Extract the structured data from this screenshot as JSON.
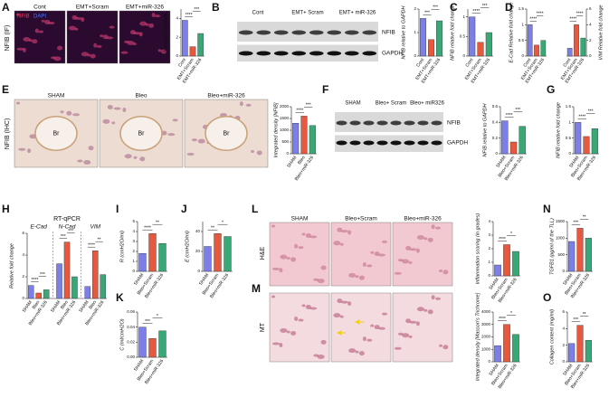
{
  "panels": [
    {
      "letter": "A",
      "side_label": "NFIB (IF)",
      "image_labels": [
        "Cont",
        "EMT+Scram",
        "EMT+miR-326"
      ],
      "stain_labels": [
        "NFIB",
        "DAPI"
      ],
      "charts": [
        {
          "type": "bar",
          "ylabel": "Integrated density",
          "categories": [
            "Cont",
            "EMT+Scram",
            "EMT+miR-326"
          ],
          "values": [
            3.8,
            1.0,
            2.4
          ],
          "colors": [
            "#7b7fe6",
            "#e8583f",
            "#3aa876"
          ],
          "ylim": [
            0,
            5
          ],
          "yticks": [
            0,
            2,
            4
          ],
          "sig": [
            "****",
            "***"
          ]
        }
      ]
    },
    {
      "letter": "B",
      "lane_labels": [
        "Cont",
        "EMT+ Scram",
        "EMT+ miR-326"
      ],
      "band_labels": [
        "NFIB",
        "GAPDH"
      ],
      "charts": [
        {
          "type": "bar",
          "ylabel": "NFIB relative to GAPDH",
          "categories": [
            "Cont",
            "EMT+Scram",
            "EMT+miR-326"
          ],
          "values": [
            1.6,
            0.7,
            1.5
          ],
          "colors": [
            "#7b7fe6",
            "#e8583f",
            "#3aa876"
          ],
          "ylim": [
            0,
            2
          ],
          "yticks": [
            0,
            1,
            2
          ],
          "sig": [
            "***",
            "***"
          ]
        }
      ]
    },
    {
      "letter": "C",
      "charts": [
        {
          "type": "bar",
          "ylabel": "NFIB relative fold change",
          "categories": [
            "Cont",
            "EMT+Scram",
            "EMT+miR-326"
          ],
          "values": [
            1.0,
            0.35,
            0.6
          ],
          "colors": [
            "#7b7fe6",
            "#e8583f",
            "#3aa876"
          ],
          "ylim": [
            0,
            1.2
          ],
          "yticks": [
            0,
            0.5,
            1
          ],
          "sig": [
            "****",
            "***"
          ]
        }
      ]
    },
    {
      "letter": "D",
      "charts": [
        {
          "type": "bar",
          "ylabel": "E-Cad Relative fold change",
          "categories": [
            "Cont",
            "EMT+Scram",
            "EMT+miR-326"
          ],
          "values": [
            1.0,
            0.35,
            0.5
          ],
          "colors": [
            "#7b7fe6",
            "#e8583f",
            "#3aa876"
          ],
          "ylim": [
            0,
            1.5
          ],
          "yticks": [
            0,
            0.5,
            1,
            1.5
          ],
          "sig": [
            "****",
            "****"
          ]
        },
        {
          "type": "bar",
          "ylabel": "VIM Relative fold change",
          "categories": [
            "Cont",
            "EMT+Scram",
            "EMT+miR-326"
          ],
          "values": [
            1.0,
            4.0,
            2.3
          ],
          "colors": [
            "#7b7fe6",
            "#e8583f",
            "#3aa876"
          ],
          "ylim": [
            0,
            6
          ],
          "yticks": [
            0,
            2,
            4,
            6
          ],
          "sig": [
            "****",
            "****"
          ]
        }
      ]
    },
    {
      "letter": "E",
      "side_label": "NFIB (IHC)",
      "image_labels": [
        "SHAM",
        "Bleo",
        "Bleo+miR-326"
      ],
      "region_labels": [
        "Br",
        "Br",
        "Br"
      ],
      "charts": [
        {
          "type": "bar",
          "ylabel": "Integrated density [NFIB]",
          "categories": [
            "SHAM",
            "Bleo",
            "Bleo+miR-326"
          ],
          "values": [
            1300,
            1600,
            1200
          ],
          "colors": [
            "#7b7fe6",
            "#e8583f",
            "#3aa876"
          ],
          "ylim": [
            0,
            2000
          ],
          "yticks": [
            0,
            500,
            1000,
            1500,
            2000
          ],
          "sig": [
            "****",
            "***"
          ]
        }
      ]
    },
    {
      "letter": "F",
      "lane_labels": [
        "SHAM",
        "Bleo+ Scram",
        "Bleo+ miR326"
      ],
      "band_labels": [
        "NFIB",
        "GAPDH"
      ],
      "charts": [
        {
          "type": "bar",
          "ylabel": "NFIB relative to GAPDH",
          "categories": [
            "SHAM",
            "Bleo+Scram",
            "Bleo+miR-326"
          ],
          "values": [
            0.42,
            0.15,
            0.35
          ],
          "colors": [
            "#7b7fe6",
            "#e8583f",
            "#3aa876"
          ],
          "ylim": [
            0,
            0.6
          ],
          "yticks": [
            0,
            0.2,
            0.4,
            0.6
          ],
          "sig": [
            "****",
            "***"
          ]
        }
      ]
    },
    {
      "letter": "G",
      "charts": [
        {
          "type": "bar",
          "ylabel": "NFIB relative fold change",
          "categories": [
            "SHAM",
            "Bleo+Scram",
            "Bleo+miR-326"
          ],
          "values": [
            1.0,
            0.55,
            0.8
          ],
          "colors": [
            "#7b7fe6",
            "#e8583f",
            "#3aa876"
          ],
          "ylim": [
            0,
            1.5
          ],
          "yticks": [
            0,
            0.5,
            1,
            1.5
          ],
          "sig": [
            "****",
            "***"
          ]
        }
      ]
    },
    {
      "letter": "H",
      "charts": [
        {
          "type": "bar",
          "title": "RT-qPCR",
          "ylabel": "Relative fold change",
          "groups": [
            "E-Cad",
            "N-Cad",
            "VIM"
          ],
          "categories": [
            "SHAM",
            "Bleo",
            "Bleo+miR-326",
            "SHAM",
            "Bleo",
            "Bleo+miR-326",
            "SHAM",
            "Bleo",
            "Bleo+miR-326"
          ],
          "values": [
            1.2,
            0.5,
            0.8,
            3.2,
            5.2,
            2.0,
            1.1,
            4.4,
            2.2
          ],
          "colors": [
            "#7b7fe6",
            "#e8583f",
            "#3aa876"
          ],
          "ylim": [
            0,
            6
          ],
          "yticks": [
            0,
            2,
            4,
            6
          ],
          "sig": [
            "****",
            "***",
            "***",
            "***",
            "****",
            "**"
          ]
        }
      ]
    },
    {
      "letter": "I",
      "charts": [
        {
          "type": "bar",
          "ylabel": "R (cmH2O/ml)",
          "categories": [
            "SHAM",
            "Bleo+Scram",
            "Bleo+miR-326"
          ],
          "values": [
            1.8,
            3.8,
            2.8
          ],
          "colors": [
            "#7b7fe6",
            "#e8583f",
            "#3aa876"
          ],
          "ylim": [
            0,
            5
          ],
          "yticks": [
            0,
            1,
            2,
            3,
            4,
            5
          ],
          "sig": [
            "****",
            "**"
          ]
        }
      ]
    },
    {
      "letter": "J",
      "charts": [
        {
          "type": "bar",
          "ylabel": "E (cmH2O/ml)",
          "categories": [
            "SHAM",
            "Bleo+Scram",
            "Bleo+miR-326"
          ],
          "values": [
            25,
            38,
            35
          ],
          "colors": [
            "#7b7fe6",
            "#e8583f",
            "#3aa876"
          ],
          "ylim": [
            0,
            50
          ],
          "yticks": [
            0,
            20,
            40
          ],
          "sig": [
            "**",
            "*"
          ]
        }
      ]
    },
    {
      "letter": "K",
      "charts": [
        {
          "type": "bar",
          "ylabel": "C (ml/cmH2O)",
          "categories": [
            "SHAM",
            "Bleo+Scram",
            "Bleo+miR-326"
          ],
          "values": [
            0.04,
            0.025,
            0.035
          ],
          "colors": [
            "#7b7fe6",
            "#e8583f",
            "#3aa876"
          ],
          "ylim": [
            0,
            0.06
          ],
          "yticks": [
            {
              "value": 0,
              "label": "0.00"
            },
            {
              "value": 0.02,
              "label": "0.02"
            },
            {
              "value": 0.04,
              "label": "0.04"
            },
            {
              "value": 0.06,
              "label": "0.06"
            }
          ],
          "sig": [
            "***",
            "*"
          ]
        }
      ]
    },
    {
      "letter": "L",
      "side_label": "H&E",
      "image_labels": [
        "SHAM",
        "Bleo+Scram",
        "Bleo+miR-326"
      ],
      "charts": [
        {
          "type": "bar",
          "ylabel": "Inflammation scoring (in grades)",
          "categories": [
            "SHAM",
            "Bleo+Scram",
            "Bleo+miR-326"
          ],
          "values": [
            0.8,
            2.3,
            1.8
          ],
          "colors": [
            "#7b7fe6",
            "#e8583f",
            "#3aa876"
          ],
          "ylim": [
            0,
            4
          ],
          "yticks": [
            0,
            1,
            2,
            3,
            4
          ],
          "sig": [
            "****",
            "*"
          ]
        }
      ]
    },
    {
      "letter": "M",
      "side_label": "MT",
      "charts": [
        {
          "type": "bar",
          "ylabel": "Integrated density [Masson's Trichrome]",
          "categories": [
            "SHAM",
            "Bleo+Scram",
            "Bleo+miR-326"
          ],
          "values": [
            1300,
            3000,
            2200
          ],
          "colors": [
            "#7b7fe6",
            "#e8583f",
            "#3aa876"
          ],
          "ylim": [
            0,
            4000
          ],
          "yticks": [
            0,
            1000,
            2000,
            3000,
            4000
          ],
          "sig": [
            "****",
            "*"
          ]
        }
      ]
    },
    {
      "letter": "N",
      "charts": [
        {
          "type": "bar",
          "ylabel": "TGFB1 (pg/ml of the TLL)",
          "categories": [
            "SHAM",
            "Bleo+Scram",
            "Bleo+miR-326"
          ],
          "values": [
            900,
            1300,
            1000
          ],
          "colors": [
            "#7b7fe6",
            "#e8583f",
            "#3aa876"
          ],
          "ylim": [
            0,
            1500
          ],
          "yticks": [
            0,
            500,
            1000,
            1500
          ],
          "sig": [
            "***",
            "**"
          ]
        }
      ]
    },
    {
      "letter": "O",
      "charts": [
        {
          "type": "bar",
          "ylabel": "Collagen content (mg/ml)",
          "categories": [
            "SHAM",
            "Bleo+Scram",
            "Bleo+miR-326"
          ],
          "values": [
            2.2,
            4.4,
            2.6
          ],
          "colors": [
            "#7b7fe6",
            "#e8583f",
            "#3aa876"
          ],
          "ylim": [
            0,
            6
          ],
          "yticks": [
            0,
            2,
            4,
            6
          ],
          "sig": [
            "***",
            "**"
          ]
        }
      ]
    }
  ]
}
